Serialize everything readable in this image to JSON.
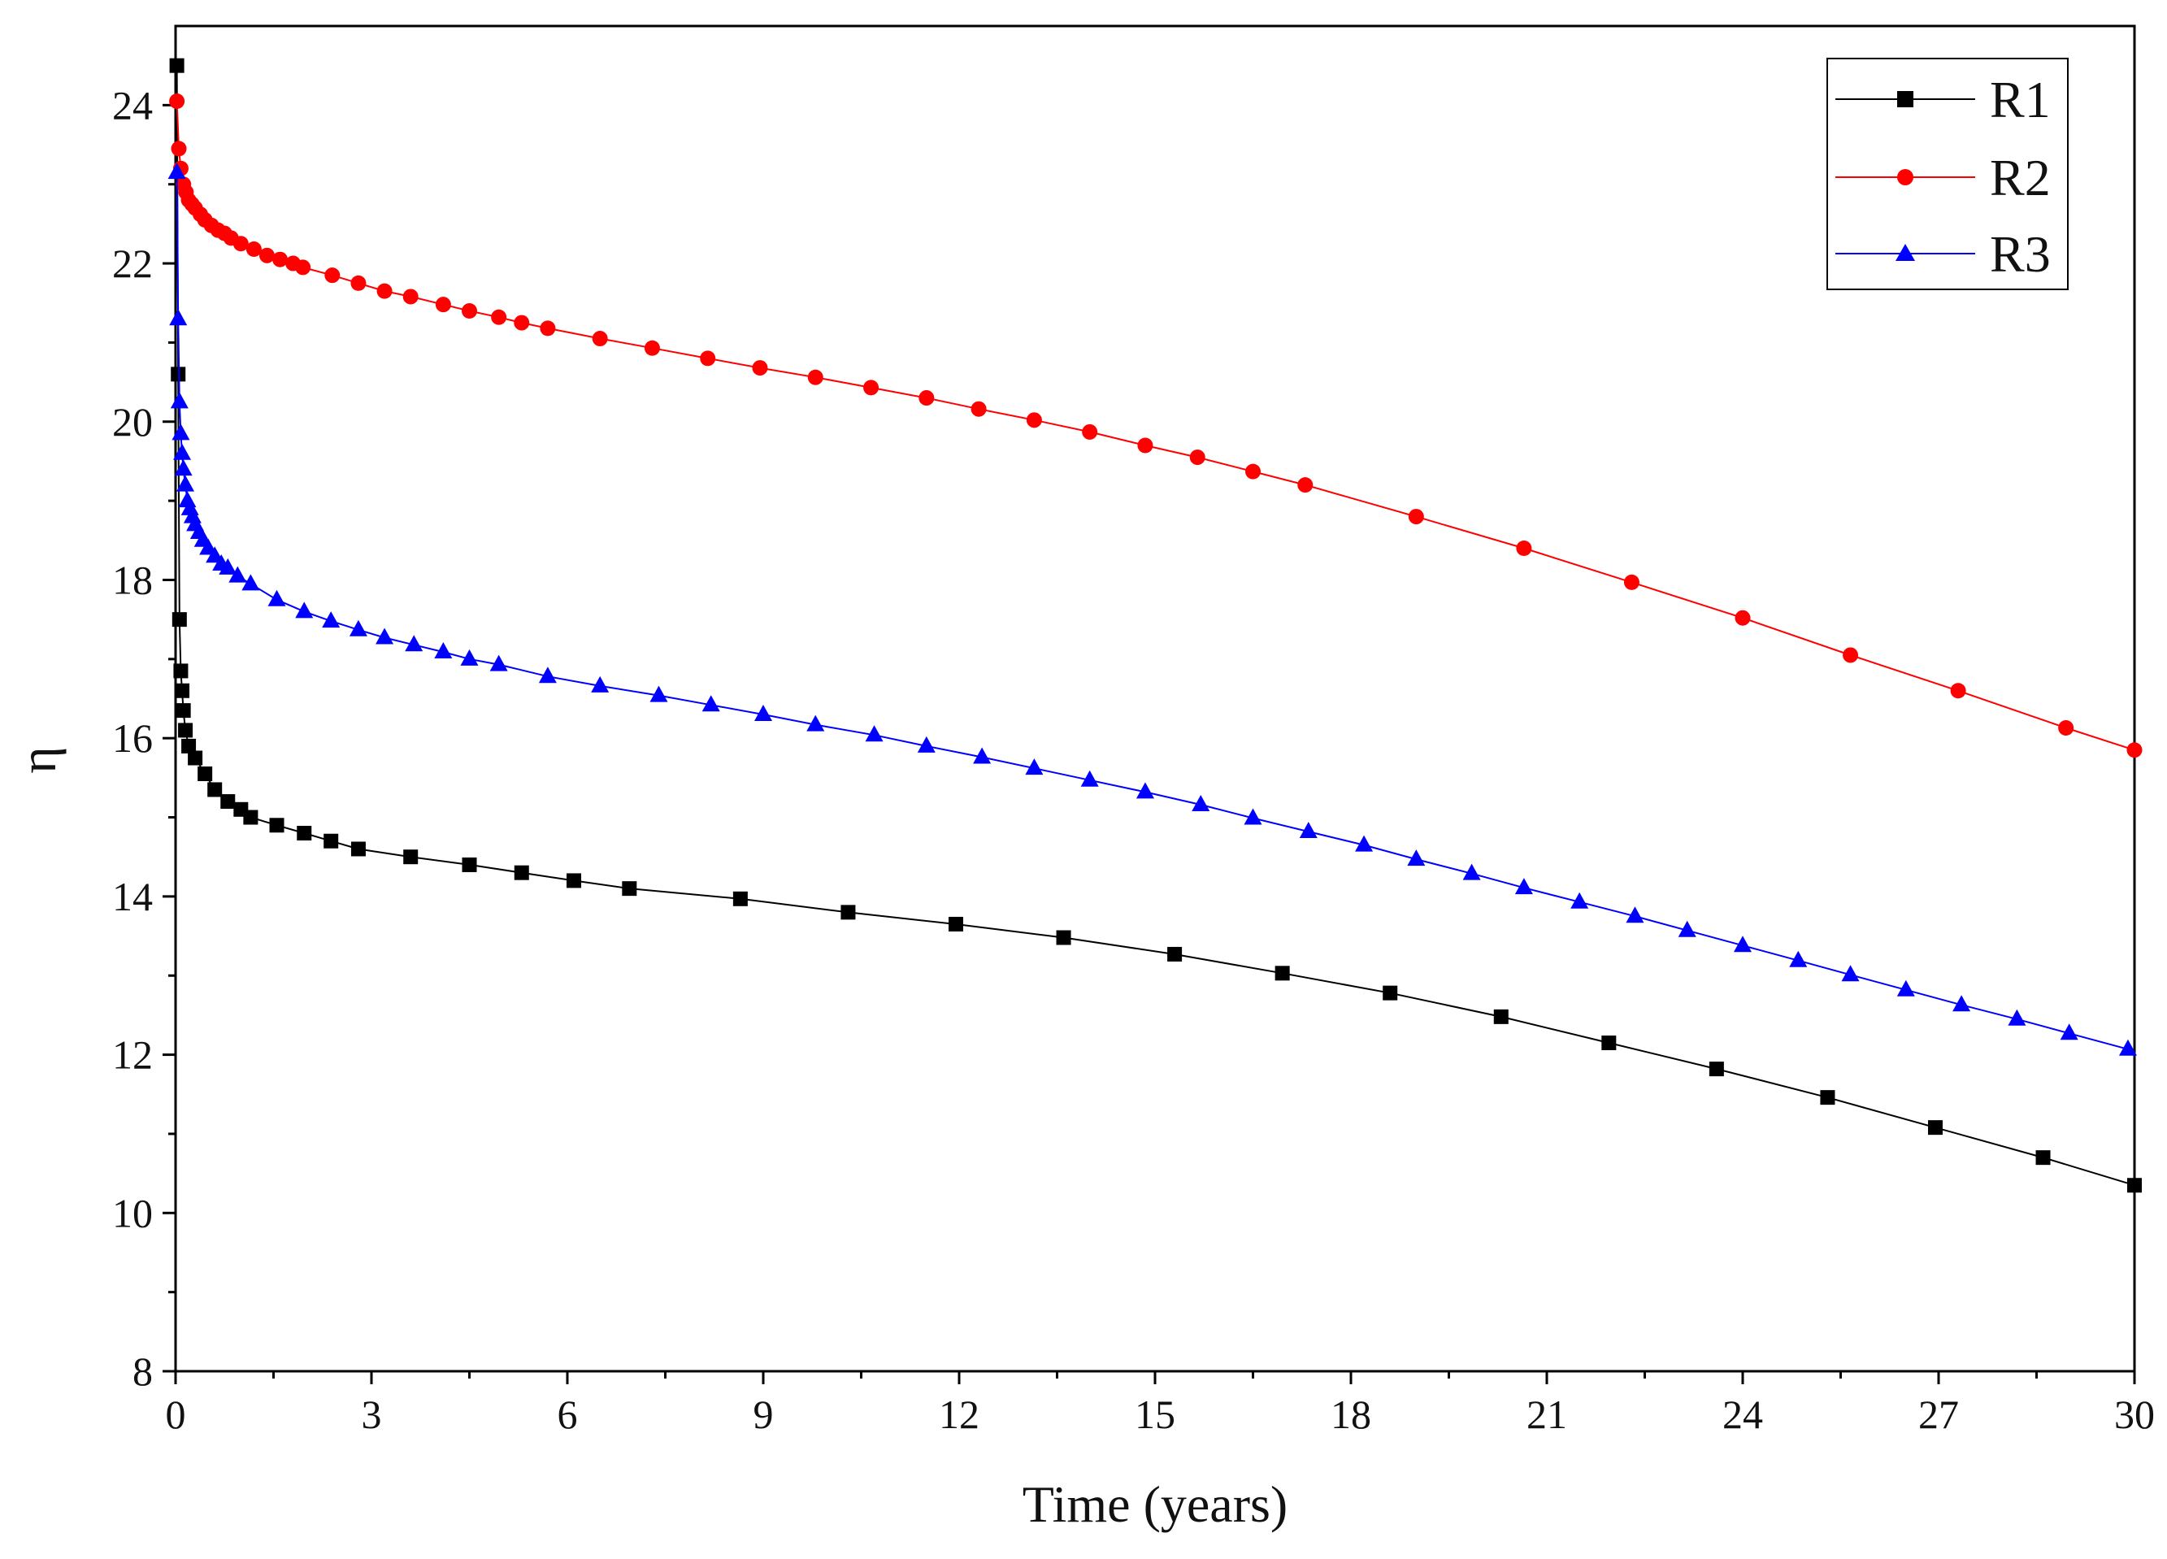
{
  "chart_data": {
    "type": "line",
    "title": "",
    "xlabel": "Time (years)",
    "ylabel": "η",
    "xlim": [
      0,
      30
    ],
    "ylim": [
      8,
      25
    ],
    "xticks": [
      "0",
      "3",
      "6",
      "9",
      "12",
      "15",
      "18",
      "21",
      "24",
      "27",
      "30"
    ],
    "yticks": [
      "8",
      "10",
      "12",
      "14",
      "16",
      "18",
      "20",
      "22",
      "24"
    ],
    "grid": false,
    "legend_position": "top-right",
    "series": [
      {
        "name": "R1",
        "color": "#000000",
        "marker": "square",
        "x": [
          0.02,
          0.04,
          0.06,
          0.08,
          0.1,
          0.12,
          0.15,
          0.2,
          0.3,
          0.45,
          0.6,
          0.8,
          1.0,
          1.15,
          1.55,
          1.97,
          2.38,
          2.8,
          3.6,
          4.5,
          5.3,
          6.1,
          6.95,
          8.65,
          10.3,
          11.95,
          13.6,
          15.3,
          16.95,
          18.6,
          20.3,
          21.95,
          23.6,
          25.3,
          26.95,
          28.6,
          30.0
        ],
        "y": [
          24.5,
          20.6,
          17.5,
          16.85,
          16.6,
          16.35,
          16.1,
          15.9,
          15.75,
          15.55,
          15.35,
          15.2,
          15.1,
          15.0,
          14.9,
          14.8,
          14.7,
          14.6,
          14.5,
          14.4,
          14.3,
          14.2,
          14.1,
          13.97,
          13.8,
          13.65,
          13.48,
          13.27,
          13.03,
          12.78,
          12.48,
          12.15,
          11.82,
          11.46,
          11.08,
          10.7,
          10.35
        ]
      },
      {
        "name": "R2",
        "color": "#ff0000",
        "marker": "circle",
        "x": [
          0.02,
          0.05,
          0.08,
          0.12,
          0.16,
          0.2,
          0.25,
          0.3,
          0.38,
          0.45,
          0.55,
          0.65,
          0.75,
          0.85,
          1.0,
          1.2,
          1.4,
          1.6,
          1.8,
          1.95,
          2.4,
          2.8,
          3.2,
          3.6,
          4.1,
          4.5,
          4.95,
          5.3,
          5.7,
          6.5,
          7.3,
          8.15,
          8.95,
          9.8,
          10.65,
          11.5,
          12.3,
          13.15,
          14.0,
          14.85,
          15.65,
          16.5,
          17.3,
          19.0,
          20.65,
          22.3,
          24.0,
          25.65,
          27.3,
          28.95,
          30.0
        ],
        "y": [
          24.05,
          23.45,
          23.2,
          23.0,
          22.9,
          22.8,
          22.75,
          22.7,
          22.62,
          22.55,
          22.48,
          22.42,
          22.38,
          22.32,
          22.25,
          22.18,
          22.1,
          22.05,
          22.0,
          21.95,
          21.85,
          21.75,
          21.65,
          21.58,
          21.48,
          21.4,
          21.32,
          21.25,
          21.18,
          21.05,
          20.93,
          20.8,
          20.68,
          20.56,
          20.43,
          20.3,
          20.16,
          20.02,
          19.87,
          19.7,
          19.55,
          19.37,
          19.2,
          18.8,
          18.4,
          17.97,
          17.52,
          17.05,
          16.6,
          16.13,
          15.85
        ]
      },
      {
        "name": "R3",
        "color": "#0000ff",
        "marker": "triangle",
        "x": [
          0.02,
          0.04,
          0.06,
          0.08,
          0.1,
          0.12,
          0.15,
          0.18,
          0.22,
          0.26,
          0.3,
          0.36,
          0.42,
          0.5,
          0.6,
          0.7,
          0.8,
          0.95,
          1.15,
          1.55,
          1.97,
          2.38,
          2.8,
          3.2,
          3.65,
          4.1,
          4.5,
          4.95,
          5.7,
          6.5,
          7.4,
          8.2,
          9.0,
          9.8,
          10.7,
          11.5,
          12.35,
          13.15,
          14.0,
          14.85,
          15.7,
          16.5,
          17.35,
          18.2,
          19.0,
          19.85,
          20.65,
          21.5,
          22.35,
          23.15,
          24.0,
          24.85,
          25.65,
          26.5,
          27.35,
          28.2,
          29.0,
          29.9
        ],
        "y": [
          23.15,
          21.3,
          20.25,
          19.85,
          19.6,
          19.4,
          19.2,
          19.0,
          18.9,
          18.8,
          18.7,
          18.6,
          18.5,
          18.4,
          18.3,
          18.2,
          18.15,
          18.05,
          17.95,
          17.75,
          17.6,
          17.48,
          17.37,
          17.27,
          17.18,
          17.09,
          17.0,
          16.93,
          16.78,
          16.66,
          16.54,
          16.42,
          16.3,
          16.17,
          16.04,
          15.9,
          15.76,
          15.62,
          15.47,
          15.32,
          15.16,
          14.99,
          14.82,
          14.65,
          14.47,
          14.29,
          14.11,
          13.93,
          13.75,
          13.57,
          13.38,
          13.19,
          13.01,
          12.82,
          12.63,
          12.45,
          12.27,
          12.07
        ]
      }
    ]
  }
}
